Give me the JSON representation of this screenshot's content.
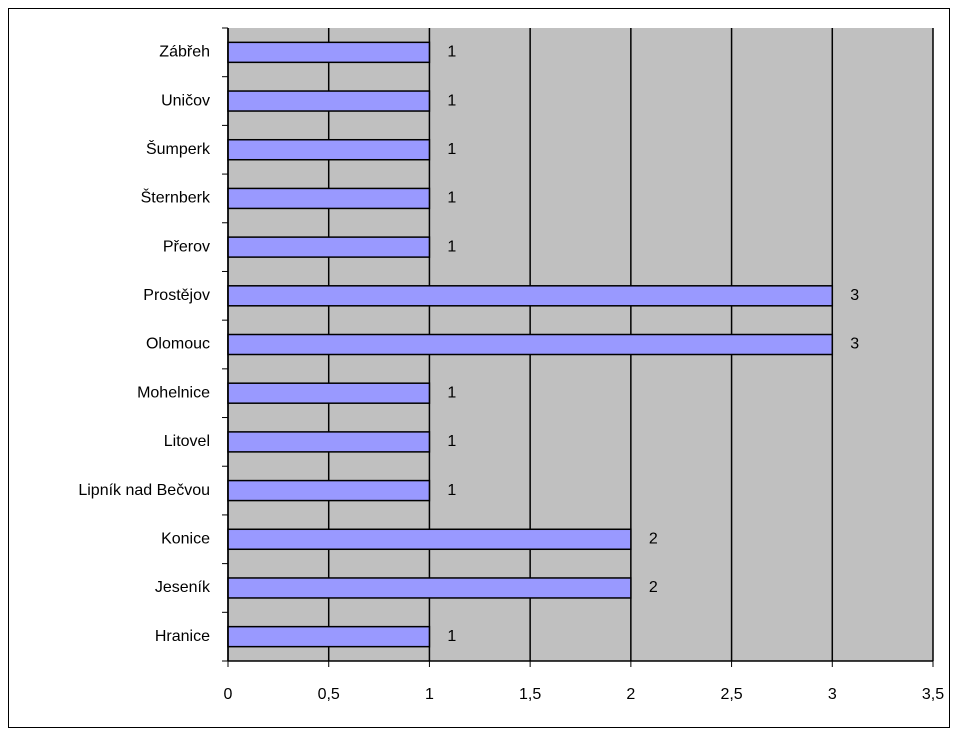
{
  "chart_data": {
    "type": "bar",
    "orientation": "horizontal",
    "categories": [
      "Zábřeh",
      "Uničov",
      "Šumperk",
      "Šternberk",
      "Přerov",
      "Prostějov",
      "Olomouc",
      "Mohelnice",
      "Litovel",
      "Lipník nad Bečvou",
      "Konice",
      "Jeseník",
      "Hranice"
    ],
    "values": [
      1,
      1,
      1,
      1,
      1,
      3,
      3,
      1,
      1,
      1,
      2,
      2,
      1
    ],
    "color": "#9999ff",
    "xlim": [
      0,
      3.5
    ],
    "xticks": [
      0,
      {
        "value": 0.5,
        "label": "0,5"
      },
      1,
      {
        "value": 1.5,
        "label": "1,5"
      },
      2,
      {
        "value": 2.5,
        "label": "2,5"
      },
      3,
      {
        "value": 3.5,
        "label": "3,5"
      }
    ],
    "grid": true
  }
}
